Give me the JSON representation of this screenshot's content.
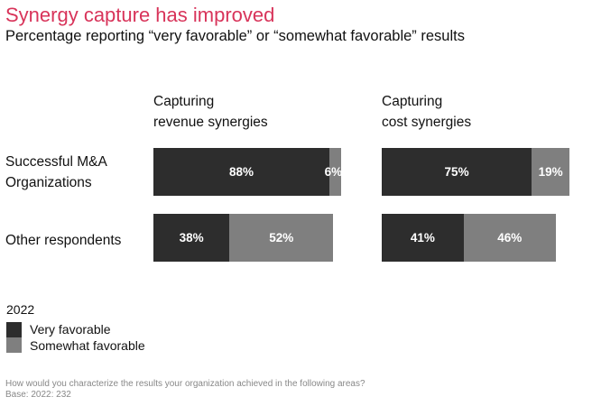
{
  "title": "Synergy capture has improved",
  "subtitle": "Percentage reporting “very favorable” or “somewhat favorable” results",
  "chart_data": {
    "type": "bar",
    "stacked": true,
    "orientation": "horizontal",
    "panels": [
      {
        "title_line1": "Capturing",
        "title_line2": "revenue synergies",
        "values": {
          "very": [
            88,
            38
          ],
          "somewhat": [
            6,
            52
          ]
        }
      },
      {
        "title_line1": "Capturing",
        "title_line2": "cost synergies",
        "values": {
          "very": [
            75,
            41
          ],
          "somewhat": [
            19,
            46
          ]
        }
      }
    ],
    "categories": [
      {
        "line1": "Successful M&A",
        "line2": "Organizations"
      },
      {
        "line1": "Other respondents",
        "line2": ""
      }
    ],
    "legend": {
      "title": "2022",
      "items": [
        {
          "name": "Very favorable",
          "color": "#2d2d2d"
        },
        {
          "name": "Somewhat favorable",
          "color": "#7f7f7f"
        }
      ]
    }
  },
  "footnote": {
    "question": "How would you characterize the results your organization achieved in the following areas?",
    "base": "Base: 2022: 232"
  }
}
